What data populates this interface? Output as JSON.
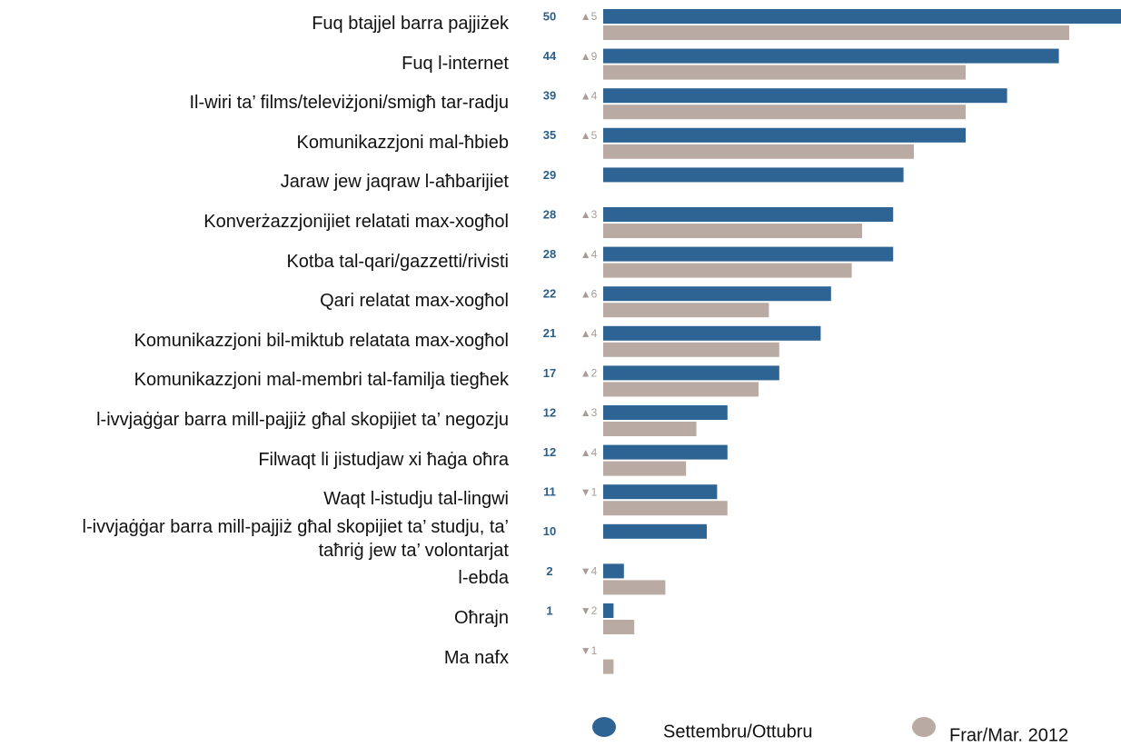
{
  "chart_data": {
    "type": "bar",
    "orientation": "horizontal",
    "categories": [
      "Fuq btajjel barra pajjiżek",
      "Fuq l-internet",
      "Il-wiri ta’ films/televiżjoni/smigħ tar-radju",
      "Komunikazzjoni mal-ħbieb",
      "Jaraw jew jaqraw l-aħbarijiet",
      "Konverżazzjonijiet relatati max-xogħol",
      "Kotba tal-qari/gazzetti/rivisti",
      "Qari relatat max-xogħol",
      "Komunikazzjoni bil-miktub relatata max-xogħol",
      "Komunikazzjoni mal-membri tal-familja tiegħek",
      "l-ivvjaġġar barra mill-pajjiż għal skopijiet ta’ negozju",
      "Filwaqt li jistudjaw xi ħaġa oħra",
      "Waqt l-istudju tal-lingwi",
      "l-ivvjaġġar barra mill-pajjiż għal skopijiet ta’ studju, ta’ taħriġ jew ta’ volontarjat",
      "l-ebda",
      "Oħrajn",
      "Ma nafx"
    ],
    "series": [
      {
        "name": "Settembru/Ottubru",
        "color": "#2e6494",
        "values": [
          50,
          44,
          39,
          35,
          29,
          28,
          28,
          22,
          21,
          17,
          12,
          12,
          11,
          10,
          2,
          1,
          null
        ]
      },
      {
        "name": "Frar/Mar. 2012",
        "color": "#b9aba3",
        "values": [
          45,
          35,
          35,
          30,
          null,
          25,
          24,
          16,
          17,
          15,
          9,
          8,
          12,
          null,
          6,
          3,
          1
        ]
      }
    ],
    "changes": {
      "values": [
        5,
        9,
        4,
        5,
        null,
        3,
        4,
        6,
        4,
        2,
        3,
        4,
        -1,
        null,
        -4,
        -2,
        -1
      ],
      "value_labels": [
        "▲5",
        "▲9",
        "▲4",
        "▲5",
        null,
        "▲3",
        "▲4",
        "▲6",
        "▲4",
        "▲2",
        "▲3",
        "▲4",
        "▼1",
        null,
        "▼4",
        "▼2",
        "▼1"
      ]
    },
    "xlim": [
      0,
      50
    ]
  }
}
